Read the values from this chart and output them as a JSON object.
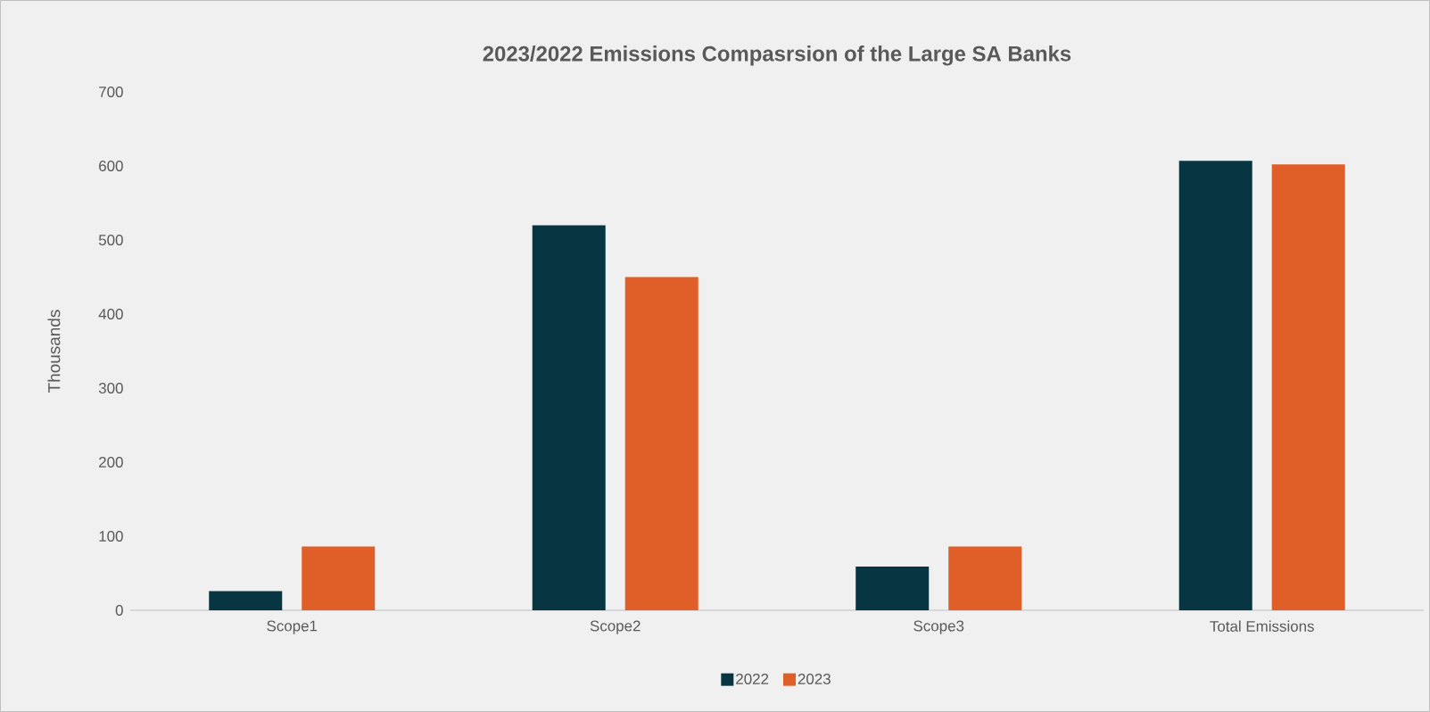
{
  "chart_data": {
    "type": "bar",
    "title": "2023/2022 Emissions Compasrsion of the Large SA Banks",
    "ylabel": "Thousands",
    "categories": [
      "Scope1",
      "Scope2",
      "Scope3",
      "Total Emissions"
    ],
    "series": [
      {
        "name": "2022",
        "color": "#073642",
        "values": [
          26,
          520,
          59,
          607
        ]
      },
      {
        "name": "2023",
        "color": "#e05e27",
        "values": [
          86,
          450,
          86,
          602
        ]
      }
    ],
    "ylim": [
      0,
      700
    ],
    "yticks": [
      0,
      100,
      200,
      300,
      400,
      500,
      600,
      700
    ],
    "legend": "bottom"
  }
}
